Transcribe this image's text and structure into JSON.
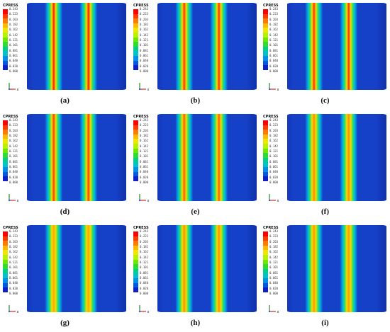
{
  "figure": {
    "legend_title": "CPRESS",
    "legend_ticks": [
      "0.243",
      "0.223",
      "0.203",
      "0.182",
      "0.162",
      "0.142",
      "0.121",
      "0.101",
      "0.081",
      "0.061",
      "0.040",
      "0.020",
      "0.000"
    ],
    "legend_colors": [
      "#ff0000",
      "#ff3b00",
      "#ff7a00",
      "#ffb800",
      "#f2e600",
      "#b7f200",
      "#6fe800",
      "#2fdc2f",
      "#00d08a",
      "#00c2c8",
      "#0090e6",
      "#0058e0",
      "#1020c8"
    ],
    "base_color": "#1540c8",
    "triad_x_label": "x",
    "panels": [
      {
        "caption": "(a)",
        "band_peak_color": "#ff1a00"
      },
      {
        "caption": "(b)",
        "band_peak_color": "#ff3000"
      },
      {
        "caption": "(c)",
        "band_peak_color": "#ff3000"
      },
      {
        "caption": "(d)",
        "band_peak_color": "#ff3a00"
      },
      {
        "caption": "(e)",
        "band_peak_color": "#ff5a00"
      },
      {
        "caption": "(f)",
        "band_peak_color": "#ff8a00"
      },
      {
        "caption": "(g)",
        "band_peak_color": "#ffa800"
      },
      {
        "caption": "(h)",
        "band_peak_color": "#ff9000"
      },
      {
        "caption": "(i)",
        "band_peak_color": "#ff9a00"
      }
    ]
  }
}
